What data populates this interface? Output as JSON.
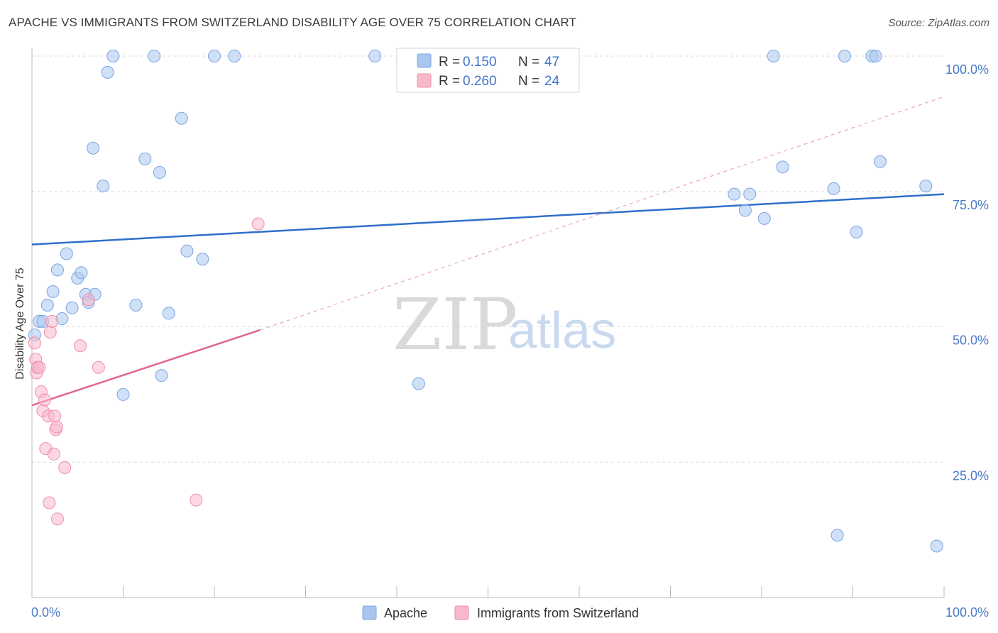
{
  "header": {
    "title": "APACHE VS IMMIGRANTS FROM SWITZERLAND DISABILITY AGE OVER 75 CORRELATION CHART",
    "source": "Source: ZipAtlas.com"
  },
  "watermark": {
    "zip": "ZIP",
    "atlas": "atlas"
  },
  "legend_top": [
    {
      "r_label": "R =",
      "r_value": "0.150",
      "n_label": "N =",
      "n_value": "47",
      "color": "#a9c6ee"
    },
    {
      "r_label": "R =",
      "r_value": "0.260",
      "n_label": "N =",
      "n_value": "24",
      "color": "#f7b8ca"
    }
  ],
  "legend_bottom": [
    {
      "label": "Apache",
      "color": "#a9c6ee"
    },
    {
      "label": "Immigrants from Switzerland",
      "color": "#f7b8ca"
    }
  ],
  "chart_data": {
    "type": "scatter",
    "title": "APACHE VS IMMIGRANTS FROM SWITZERLAND DISABILITY AGE OVER 75 CORRELATION CHART",
    "xlabel": "",
    "ylabel": "Disability Age Over 75",
    "xlim": [
      0,
      100
    ],
    "ylim": [
      0,
      100
    ],
    "x_tick_labels": [
      "0.0%",
      "100.0%"
    ],
    "y_tick_labels": [
      "25.0%",
      "50.0%",
      "75.0%",
      "100.0%"
    ],
    "y_ticks": [
      25,
      50,
      75,
      100
    ],
    "grid": true,
    "legend_position": "top-center",
    "colors": {
      "apache": "#7aa6e3",
      "swiss": "#ef8fab",
      "apache_line": "#2f6fcb",
      "swiss_line": "#e0668f"
    },
    "series": [
      {
        "name": "Apache",
        "points": [
          [
            0.3,
            48.5
          ],
          [
            0.8,
            51.0
          ],
          [
            1.2,
            51.0
          ],
          [
            1.7,
            54.0
          ],
          [
            2.3,
            56.5
          ],
          [
            2.8,
            60.5
          ],
          [
            3.3,
            51.5
          ],
          [
            3.8,
            63.5
          ],
          [
            4.4,
            53.5
          ],
          [
            5.0,
            59.0
          ],
          [
            5.4,
            60.0
          ],
          [
            5.9,
            56.0
          ],
          [
            6.2,
            54.5
          ],
          [
            6.9,
            56.0
          ],
          [
            6.7,
            83.0
          ],
          [
            7.8,
            76.0
          ],
          [
            8.3,
            97.0
          ],
          [
            8.9,
            100.0
          ],
          [
            10.0,
            37.5
          ],
          [
            11.4,
            54.0
          ],
          [
            12.4,
            81.0
          ],
          [
            13.4,
            100.0
          ],
          [
            14.0,
            78.5
          ],
          [
            14.2,
            41.0
          ],
          [
            15.0,
            52.5
          ],
          [
            16.4,
            88.5
          ],
          [
            17.0,
            64.0
          ],
          [
            18.7,
            62.5
          ],
          [
            20.0,
            100.0
          ],
          [
            22.2,
            100.0
          ],
          [
            37.6,
            100.0
          ],
          [
            42.4,
            39.5
          ],
          [
            77.0,
            74.5
          ],
          [
            78.2,
            71.5
          ],
          [
            78.7,
            74.5
          ],
          [
            80.3,
            70.0
          ],
          [
            81.3,
            100.0
          ],
          [
            82.3,
            79.5
          ],
          [
            87.9,
            75.5
          ],
          [
            88.3,
            11.5
          ],
          [
            89.1,
            100.0
          ],
          [
            90.4,
            67.5
          ],
          [
            92.1,
            100.0
          ],
          [
            92.5,
            100.0
          ],
          [
            93.0,
            80.5
          ],
          [
            98.0,
            76.0
          ],
          [
            99.2,
            9.5
          ]
        ]
      },
      {
        "name": "Immigrants from Switzerland",
        "points": [
          [
            0.3,
            47.0
          ],
          [
            0.4,
            44.0
          ],
          [
            0.5,
            41.5
          ],
          [
            0.6,
            42.5
          ],
          [
            0.8,
            42.5
          ],
          [
            1.0,
            38.0
          ],
          [
            1.2,
            34.5
          ],
          [
            1.4,
            36.5
          ],
          [
            1.5,
            27.5
          ],
          [
            1.8,
            33.5
          ],
          [
            1.9,
            17.5
          ],
          [
            2.0,
            49.0
          ],
          [
            2.2,
            51.0
          ],
          [
            2.4,
            26.5
          ],
          [
            2.5,
            33.5
          ],
          [
            2.6,
            31.0
          ],
          [
            2.7,
            31.5
          ],
          [
            2.8,
            14.5
          ],
          [
            3.6,
            24.0
          ],
          [
            5.3,
            46.5
          ],
          [
            6.2,
            55.0
          ],
          [
            7.3,
            42.5
          ],
          [
            18.0,
            18.0
          ],
          [
            24.8,
            69.0
          ]
        ]
      }
    ],
    "trendlines": [
      {
        "series": "Apache",
        "x": [
          0,
          100
        ],
        "y": [
          65.2,
          74.5
        ],
        "style": "solid"
      },
      {
        "series": "Immigrants from Switzerland",
        "x": [
          0,
          25
        ],
        "y": [
          35.5,
          49.4
        ],
        "style": "solid"
      },
      {
        "series": "Immigrants from Switzerland",
        "x": [
          25,
          100
        ],
        "y": [
          49.4,
          92.5
        ],
        "style": "dashed"
      }
    ]
  }
}
